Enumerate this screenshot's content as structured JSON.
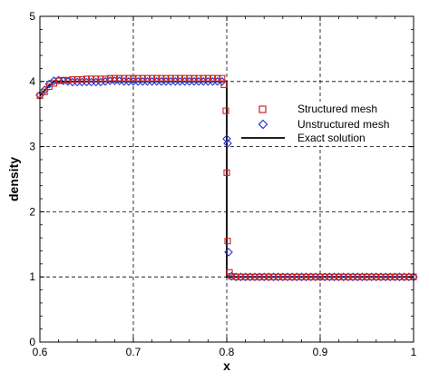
{
  "chart_data": {
    "type": "scatter",
    "xlabel": "x",
    "ylabel": "density",
    "xlim": [
      0.6,
      1.0
    ],
    "ylim": [
      0,
      5
    ],
    "x_ticks": [
      "0.6",
      "0.7",
      "0.8",
      "0.9",
      "1"
    ],
    "y_ticks": [
      "0",
      "1",
      "2",
      "3",
      "4",
      "5"
    ],
    "grid": true,
    "grid_style": "dashed",
    "legend_position": "right, upper-middle",
    "series": [
      {
        "name": "Structured mesh",
        "marker": "square",
        "color": "#cc2222",
        "x": [
          0.6,
          0.605,
          0.61,
          0.615,
          0.62,
          0.625,
          0.63,
          0.635,
          0.64,
          0.645,
          0.65,
          0.655,
          0.66,
          0.665,
          0.67,
          0.675,
          0.68,
          0.685,
          0.69,
          0.695,
          0.7,
          0.705,
          0.71,
          0.715,
          0.72,
          0.725,
          0.73,
          0.735,
          0.74,
          0.745,
          0.75,
          0.755,
          0.76,
          0.765,
          0.77,
          0.775,
          0.78,
          0.785,
          0.79,
          0.795,
          0.797,
          0.799,
          0.8,
          0.801,
          0.803,
          0.805,
          0.81,
          0.815,
          0.82,
          0.825,
          0.83,
          0.835,
          0.84,
          0.845,
          0.85,
          0.855,
          0.86,
          0.865,
          0.87,
          0.875,
          0.88,
          0.885,
          0.89,
          0.895,
          0.9,
          0.905,
          0.91,
          0.915,
          0.92,
          0.925,
          0.93,
          0.935,
          0.94,
          0.945,
          0.95,
          0.955,
          0.96,
          0.965,
          0.97,
          0.975,
          0.98,
          0.985,
          0.99,
          0.995,
          1.0
        ],
        "y": [
          3.78,
          3.84,
          3.92,
          3.97,
          4.01,
          4.02,
          4.02,
          4.03,
          4.03,
          4.03,
          4.04,
          4.04,
          4.04,
          4.04,
          4.04,
          4.05,
          4.05,
          4.05,
          4.05,
          4.05,
          4.05,
          4.05,
          4.05,
          4.05,
          4.05,
          4.05,
          4.05,
          4.05,
          4.05,
          4.05,
          4.05,
          4.05,
          4.05,
          4.05,
          4.05,
          4.05,
          4.05,
          4.05,
          4.05,
          4.05,
          3.95,
          3.55,
          2.6,
          1.55,
          1.07,
          1.01,
          1.0,
          1.0,
          1.0,
          1.0,
          1.0,
          1.0,
          1.0,
          1.0,
          1.0,
          1.0,
          1.0,
          1.0,
          1.0,
          1.0,
          1.0,
          1.0,
          1.0,
          1.0,
          1.0,
          1.0,
          1.0,
          1.0,
          1.0,
          1.0,
          1.0,
          1.0,
          1.0,
          1.0,
          1.0,
          1.0,
          1.0,
          1.0,
          1.0,
          1.0,
          1.0,
          1.0,
          1.0,
          1.0,
          1.0
        ]
      },
      {
        "name": "Unstructured mesh",
        "marker": "diamond",
        "color": "#2233cc",
        "x": [
          0.6,
          0.605,
          0.61,
          0.615,
          0.62,
          0.625,
          0.63,
          0.635,
          0.64,
          0.645,
          0.65,
          0.655,
          0.66,
          0.665,
          0.67,
          0.675,
          0.68,
          0.685,
          0.69,
          0.695,
          0.7,
          0.705,
          0.71,
          0.715,
          0.72,
          0.725,
          0.73,
          0.735,
          0.74,
          0.745,
          0.75,
          0.755,
          0.76,
          0.765,
          0.77,
          0.775,
          0.78,
          0.785,
          0.79,
          0.795,
          0.8,
          0.801,
          0.802,
          0.805,
          0.81,
          0.815,
          0.82,
          0.825,
          0.83,
          0.835,
          0.84,
          0.845,
          0.85,
          0.855,
          0.86,
          0.865,
          0.87,
          0.875,
          0.88,
          0.885,
          0.89,
          0.895,
          0.9,
          0.905,
          0.91,
          0.915,
          0.92,
          0.925,
          0.93,
          0.935,
          0.94,
          0.945,
          0.95,
          0.955,
          0.96,
          0.965,
          0.97,
          0.975,
          0.98,
          0.985,
          0.99,
          0.995,
          1.0
        ],
        "y": [
          3.79,
          3.87,
          3.96,
          4.01,
          4.02,
          4.01,
          4.0,
          3.99,
          3.99,
          3.99,
          3.99,
          3.99,
          3.99,
          3.99,
          4.0,
          4.01,
          4.01,
          4.01,
          4.0,
          4.0,
          4.0,
          4.0,
          4.0,
          4.0,
          4.0,
          4.0,
          4.0,
          4.0,
          4.0,
          4.0,
          4.0,
          4.0,
          4.0,
          4.0,
          4.0,
          4.0,
          4.0,
          4.0,
          4.0,
          4.0,
          3.12,
          3.05,
          1.38,
          1.01,
          1.0,
          1.0,
          1.0,
          1.0,
          1.0,
          1.0,
          1.0,
          1.0,
          1.0,
          1.0,
          1.0,
          1.0,
          1.0,
          1.0,
          1.0,
          1.0,
          1.0,
          1.0,
          1.0,
          1.0,
          1.0,
          1.0,
          1.0,
          1.0,
          1.0,
          1.0,
          1.0,
          1.0,
          1.0,
          1.0,
          1.0,
          1.0,
          1.0,
          1.0,
          1.0,
          1.0,
          1.0,
          1.0,
          1.0
        ]
      },
      {
        "name": "Exact solution",
        "marker": "line",
        "color": "#000000",
        "x": [
          0.6,
          0.61,
          0.615,
          0.8,
          0.8,
          1.0
        ],
        "y": [
          3.78,
          3.94,
          4.0,
          4.0,
          1.0,
          1.0
        ]
      }
    ]
  }
}
